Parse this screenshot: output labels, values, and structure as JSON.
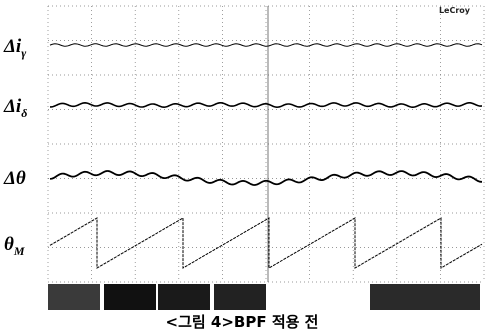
{
  "brand": "LeCroy",
  "traces": [
    {
      "symbol": "Δi",
      "subscript": "γ"
    },
    {
      "symbol": "Δi",
      "subscript": "δ"
    },
    {
      "symbol": "Δθ"
    },
    {
      "symbol": "θ",
      "subscript": "M"
    }
  ],
  "caption": "<그림 4>BPF 적용 전"
}
